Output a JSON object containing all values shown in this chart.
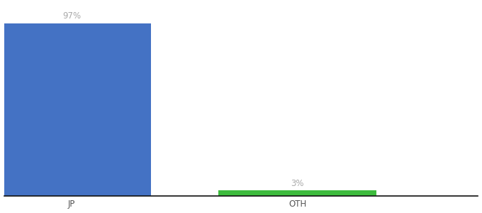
{
  "categories": [
    "JP",
    "OTH"
  ],
  "values": [
    97,
    3
  ],
  "bar_colors": [
    "#4472c4",
    "#3dbb3d"
  ],
  "value_labels": [
    "97%",
    "3%"
  ],
  "label_color": "#aaaaaa",
  "ylim": [
    0,
    108
  ],
  "background_color": "#ffffff",
  "label_fontsize": 8.5,
  "tick_fontsize": 8.5,
  "bar_width": 0.7,
  "xlim": [
    -0.3,
    1.8
  ]
}
